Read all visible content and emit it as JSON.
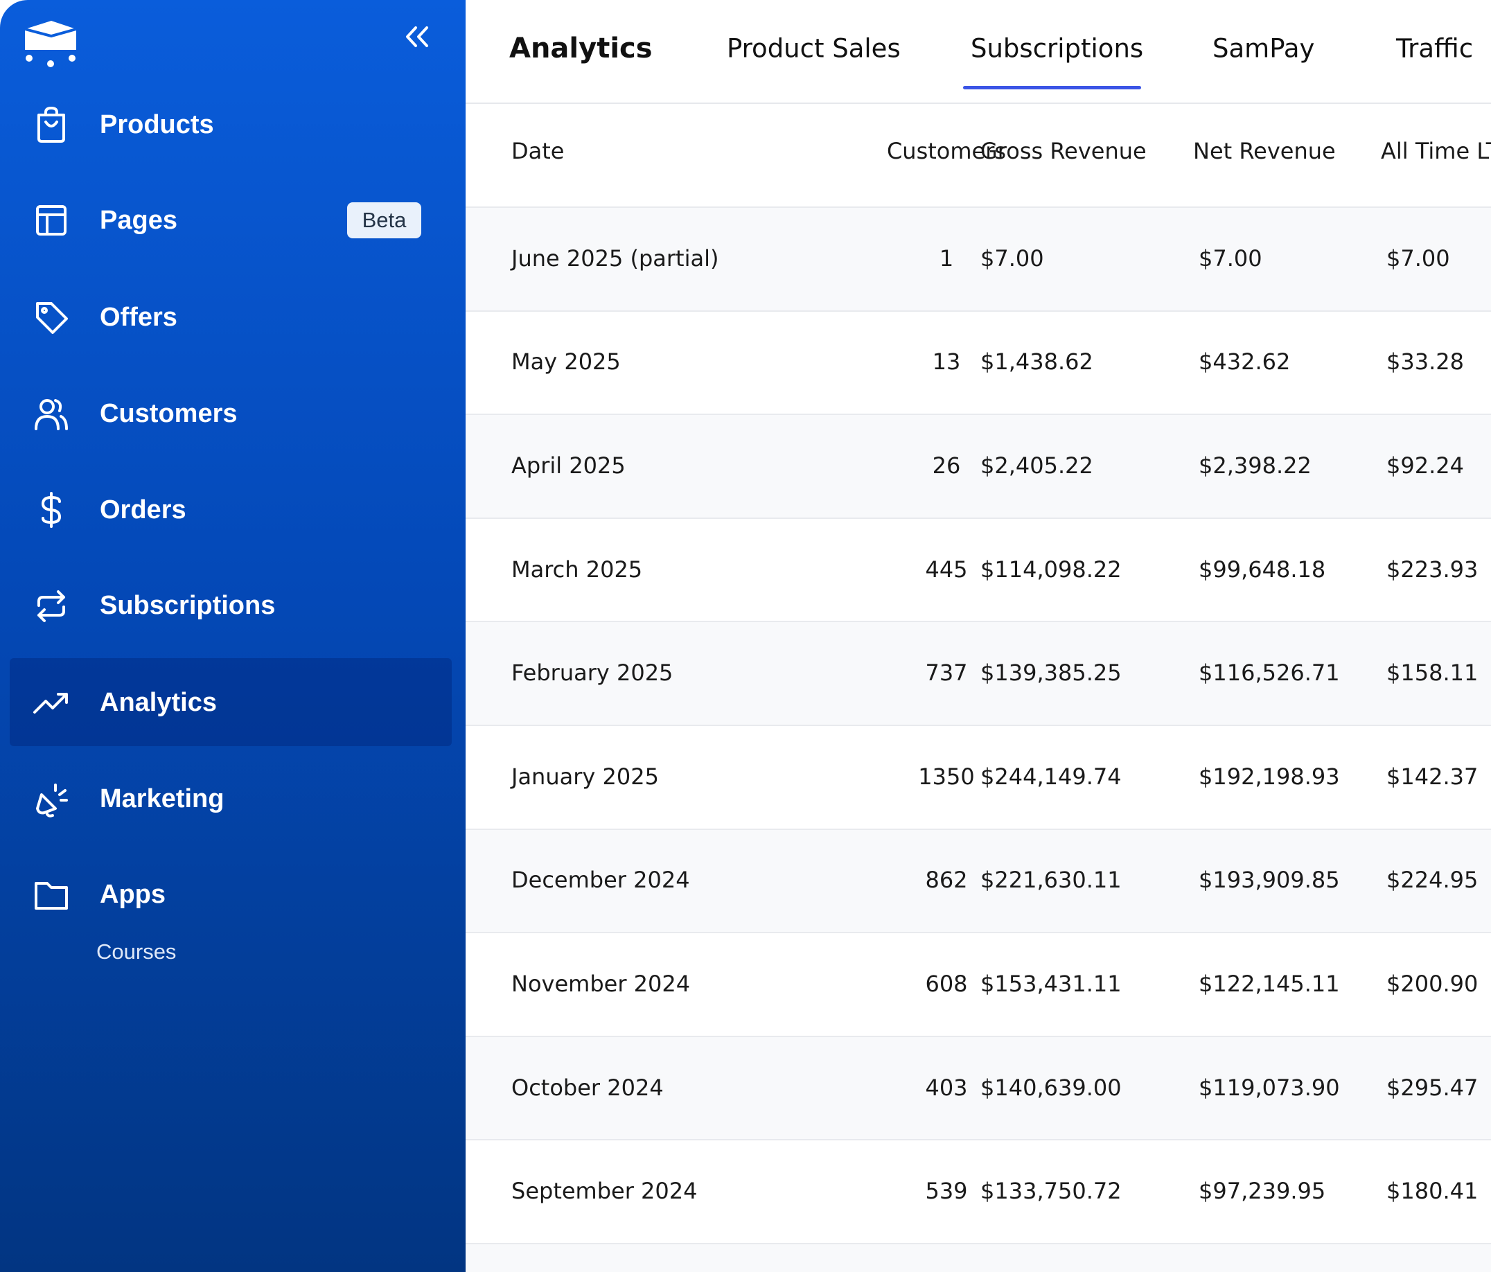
{
  "sidebar": {
    "nav": [
      {
        "label": "Products"
      },
      {
        "label": "Pages",
        "badge": "Beta"
      },
      {
        "label": "Offers"
      },
      {
        "label": "Customers"
      },
      {
        "label": "Orders"
      },
      {
        "label": "Subscriptions"
      },
      {
        "label": "Analytics"
      },
      {
        "label": "Marketing"
      },
      {
        "label": "Apps"
      }
    ],
    "sub_items": [
      "Courses"
    ]
  },
  "tabs": [
    "Analytics",
    "Product Sales",
    "Subscriptions",
    "SamPay",
    "Traffic"
  ],
  "table": {
    "columns": [
      "Date",
      "Customers",
      "Gross Revenue",
      "Net Revenue",
      "All Time LT"
    ],
    "rows": [
      [
        "June 2025 (partial)",
        "1",
        "$7.00",
        "$7.00",
        "$7.00"
      ],
      [
        "May 2025",
        "13",
        "$1,438.62",
        "$432.62",
        "$33.28"
      ],
      [
        "April 2025",
        "26",
        "$2,405.22",
        "$2,398.22",
        "$92.24"
      ],
      [
        "March 2025",
        "445",
        "$114,098.22",
        "$99,648.18",
        "$223.93"
      ],
      [
        "February 2025",
        "737",
        "$139,385.25",
        "$116,526.71",
        "$158.11"
      ],
      [
        "January 2025",
        "1350",
        "$244,149.74",
        "$192,198.93",
        "$142.37"
      ],
      [
        "December 2024",
        "862",
        "$221,630.11",
        "$193,909.85",
        "$224.95"
      ],
      [
        "November 2024",
        "608",
        "$153,431.11",
        "$122,145.11",
        "$200.90"
      ],
      [
        "October 2024",
        "403",
        "$140,639.00",
        "$119,073.90",
        "$295.47"
      ],
      [
        "September 2024",
        "539",
        "$133,750.72",
        "$97,239.95",
        "$180.41"
      ]
    ]
  }
}
